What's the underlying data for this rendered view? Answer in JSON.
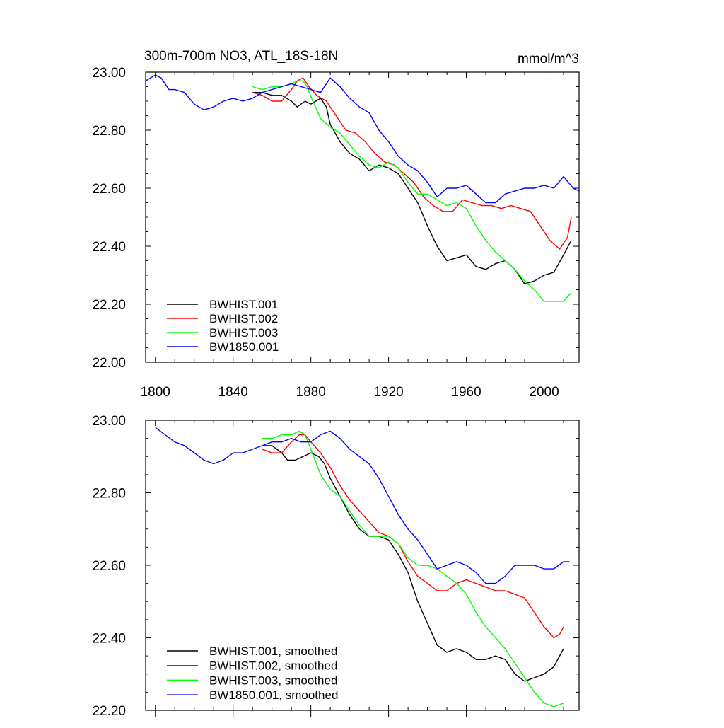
{
  "chart_data": [
    {
      "type": "line",
      "title": "300m-700m NO3, ATL_18S-18N",
      "units": "mmol/m^3",
      "xlim": [
        1795,
        2018
      ],
      "ylim": [
        22.0,
        23.0
      ],
      "x_ticks": [
        1800,
        1840,
        1880,
        1920,
        1960,
        2000
      ],
      "x_tick_labels": [
        "1800",
        "1840",
        "1880",
        "1920",
        "1960",
        "2000"
      ],
      "y_ticks": [
        22.0,
        22.2,
        22.4,
        22.6,
        22.8,
        23.0
      ],
      "y_tick_labels": [
        "22.00",
        "22.20",
        "22.40",
        "22.60",
        "22.80",
        "23.00"
      ],
      "legend_position": "bottom-left",
      "series": [
        {
          "name": "BWHIST.001",
          "color": "#000000",
          "x": [
            1850,
            1855,
            1860,
            1865,
            1870,
            1873,
            1877,
            1880,
            1885,
            1888,
            1890,
            1895,
            1900,
            1905,
            1910,
            1915,
            1920,
            1925,
            1930,
            1935,
            1940,
            1945,
            1950,
            1955,
            1960,
            1965,
            1970,
            1975,
            1980,
            1985,
            1990,
            1995,
            2000,
            2005,
            2010,
            2014
          ],
          "y": [
            22.93,
            22.93,
            22.92,
            22.92,
            22.9,
            22.88,
            22.9,
            22.89,
            22.91,
            22.88,
            22.82,
            22.76,
            22.72,
            22.7,
            22.66,
            22.68,
            22.67,
            22.65,
            22.6,
            22.55,
            22.47,
            22.4,
            22.35,
            22.36,
            22.37,
            22.33,
            22.32,
            22.34,
            22.35,
            22.32,
            22.27,
            22.28,
            22.3,
            22.31,
            22.37,
            22.42
          ]
        },
        {
          "name": "BWHIST.002",
          "color": "#ff0000",
          "x": [
            1850,
            1855,
            1860,
            1865,
            1870,
            1873,
            1876,
            1879,
            1883,
            1888,
            1893,
            1898,
            1903,
            1908,
            1913,
            1918,
            1923,
            1928,
            1933,
            1938,
            1943,
            1948,
            1953,
            1958,
            1963,
            1968,
            1973,
            1978,
            1983,
            1988,
            1993,
            1998,
            2003,
            2008,
            2012,
            2014
          ],
          "y": [
            22.93,
            22.92,
            22.9,
            22.9,
            22.94,
            22.97,
            22.98,
            22.95,
            22.92,
            22.9,
            22.85,
            22.8,
            22.79,
            22.76,
            22.72,
            22.69,
            22.68,
            22.65,
            22.62,
            22.57,
            22.54,
            22.52,
            22.52,
            22.56,
            22.55,
            22.54,
            22.54,
            22.53,
            22.54,
            22.53,
            22.52,
            22.47,
            22.42,
            22.39,
            22.43,
            22.5
          ]
        },
        {
          "name": "BWHIST.003",
          "color": "#00ff00",
          "x": [
            1850,
            1855,
            1860,
            1865,
            1870,
            1873,
            1876,
            1878,
            1881,
            1885,
            1890,
            1895,
            1900,
            1905,
            1910,
            1915,
            1920,
            1925,
            1930,
            1935,
            1940,
            1945,
            1950,
            1955,
            1960,
            1965,
            1970,
            1975,
            1980,
            1985,
            1990,
            1995,
            2000,
            2005,
            2010,
            2014
          ],
          "y": [
            22.95,
            22.94,
            22.95,
            22.95,
            22.96,
            22.97,
            22.97,
            22.95,
            22.9,
            22.84,
            22.81,
            22.79,
            22.75,
            22.71,
            22.68,
            22.67,
            22.69,
            22.67,
            22.62,
            22.58,
            22.58,
            22.56,
            22.54,
            22.55,
            22.53,
            22.47,
            22.42,
            22.38,
            22.35,
            22.32,
            22.28,
            22.25,
            22.21,
            22.21,
            22.21,
            22.24
          ]
        },
        {
          "name": "BW1850.001",
          "color": "#0000ff",
          "x": [
            1795,
            1800,
            1803,
            1807,
            1810,
            1815,
            1820,
            1825,
            1830,
            1835,
            1840,
            1845,
            1850,
            1855,
            1860,
            1865,
            1870,
            1875,
            1880,
            1885,
            1890,
            1895,
            1900,
            1905,
            1910,
            1915,
            1920,
            1925,
            1930,
            1935,
            1940,
            1945,
            1950,
            1955,
            1960,
            1965,
            1970,
            1975,
            1980,
            1985,
            1990,
            1995,
            2000,
            2005,
            2010,
            2015,
            2018
          ],
          "y": [
            22.97,
            22.99,
            22.98,
            22.94,
            22.94,
            22.93,
            22.89,
            22.87,
            22.88,
            22.9,
            22.91,
            22.9,
            22.91,
            22.93,
            22.94,
            22.95,
            22.96,
            22.95,
            22.94,
            22.93,
            22.98,
            22.95,
            22.91,
            22.88,
            22.86,
            22.8,
            22.76,
            22.71,
            22.68,
            22.66,
            22.62,
            22.57,
            22.6,
            22.6,
            22.61,
            22.58,
            22.55,
            22.55,
            22.58,
            22.59,
            22.6,
            22.6,
            22.61,
            22.6,
            22.64,
            22.6,
            22.59
          ]
        }
      ]
    },
    {
      "type": "line",
      "title": "",
      "xlim": [
        1795,
        2018
      ],
      "ylim": [
        22.2,
        23.0
      ],
      "x_ticks": [
        1800,
        1840,
        1880,
        1920,
        1960,
        2000
      ],
      "y_ticks": [
        22.2,
        22.4,
        22.6,
        22.8,
        23.0
      ],
      "y_tick_labels": [
        "22.20",
        "22.40",
        "22.60",
        "22.80",
        "23.00"
      ],
      "legend_position": "bottom-left",
      "series": [
        {
          "name": "BWHIST.001, smoothed",
          "color": "#000000",
          "x": [
            1855,
            1860,
            1865,
            1868,
            1872,
            1876,
            1880,
            1884,
            1887,
            1890,
            1895,
            1900,
            1905,
            1910,
            1915,
            1920,
            1925,
            1930,
            1935,
            1940,
            1945,
            1950,
            1955,
            1960,
            1965,
            1970,
            1975,
            1980,
            1985,
            1990,
            1995,
            2000,
            2005,
            2010
          ],
          "y": [
            22.93,
            22.93,
            22.91,
            22.89,
            22.89,
            22.9,
            22.91,
            22.9,
            22.88,
            22.84,
            22.79,
            22.74,
            22.7,
            22.68,
            22.68,
            22.67,
            22.63,
            22.58,
            22.5,
            22.44,
            22.38,
            22.36,
            22.37,
            22.36,
            22.34,
            22.34,
            22.35,
            22.34,
            22.3,
            22.28,
            22.29,
            22.3,
            22.32,
            22.37
          ]
        },
        {
          "name": "BWHIST.002, smoothed",
          "color": "#ff0000",
          "x": [
            1855,
            1860,
            1865,
            1870,
            1874,
            1877,
            1880,
            1885,
            1890,
            1895,
            1900,
            1905,
            1910,
            1915,
            1920,
            1925,
            1930,
            1935,
            1940,
            1945,
            1950,
            1955,
            1960,
            1965,
            1970,
            1975,
            1980,
            1985,
            1990,
            1995,
            2000,
            2005,
            2008,
            2010
          ],
          "y": [
            22.92,
            22.91,
            22.91,
            22.94,
            22.96,
            22.96,
            22.94,
            22.91,
            22.87,
            22.82,
            22.78,
            22.75,
            22.72,
            22.69,
            22.68,
            22.66,
            22.61,
            22.57,
            22.55,
            22.53,
            22.53,
            22.55,
            22.56,
            22.55,
            22.54,
            22.53,
            22.53,
            22.52,
            22.51,
            22.47,
            22.43,
            22.4,
            22.41,
            22.43
          ]
        },
        {
          "name": "BWHIST.003, smoothed",
          "color": "#00ff00",
          "x": [
            1855,
            1860,
            1865,
            1870,
            1874,
            1877,
            1880,
            1885,
            1890,
            1895,
            1900,
            1905,
            1910,
            1915,
            1920,
            1925,
            1930,
            1935,
            1940,
            1945,
            1950,
            1955,
            1960,
            1965,
            1970,
            1975,
            1980,
            1985,
            1990,
            1995,
            2000,
            2005,
            2010
          ],
          "y": [
            22.95,
            22.95,
            22.96,
            22.96,
            22.97,
            22.96,
            22.92,
            22.85,
            22.81,
            22.79,
            22.75,
            22.71,
            22.68,
            22.68,
            22.68,
            22.66,
            22.62,
            22.6,
            22.6,
            22.59,
            22.57,
            22.55,
            22.52,
            22.47,
            22.43,
            22.4,
            22.37,
            22.33,
            22.29,
            22.25,
            22.22,
            22.21,
            22.22
          ]
        },
        {
          "name": "BW1850.001, smoothed",
          "color": "#0000ff",
          "x": [
            1800,
            1805,
            1810,
            1815,
            1820,
            1825,
            1830,
            1835,
            1840,
            1845,
            1850,
            1855,
            1860,
            1865,
            1870,
            1875,
            1880,
            1885,
            1890,
            1895,
            1900,
            1905,
            1910,
            1915,
            1920,
            1925,
            1930,
            1935,
            1940,
            1945,
            1950,
            1955,
            1960,
            1965,
            1970,
            1975,
            1980,
            1985,
            1990,
            1995,
            2000,
            2005,
            2010,
            2013
          ],
          "y": [
            22.98,
            22.96,
            22.94,
            22.93,
            22.91,
            22.89,
            22.88,
            22.89,
            22.91,
            22.91,
            22.92,
            22.93,
            22.94,
            22.94,
            22.95,
            22.94,
            22.94,
            22.96,
            22.97,
            22.95,
            22.92,
            22.9,
            22.88,
            22.84,
            22.79,
            22.74,
            22.7,
            22.67,
            22.63,
            22.59,
            22.6,
            22.61,
            22.6,
            22.58,
            22.55,
            22.55,
            22.57,
            22.6,
            22.6,
            22.6,
            22.59,
            22.59,
            22.61,
            22.61
          ]
        }
      ]
    }
  ]
}
